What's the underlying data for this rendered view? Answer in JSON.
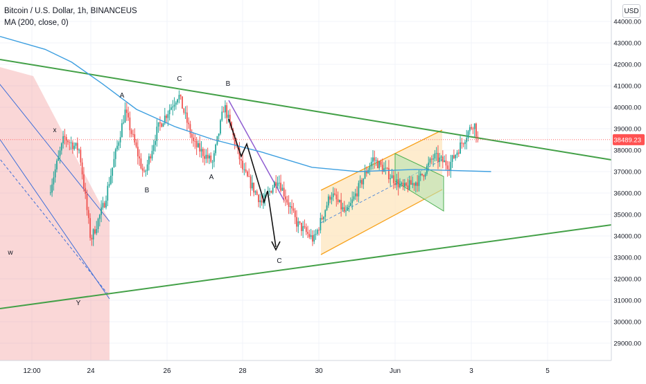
{
  "header": {
    "title": "Bitcoin / U.S. Dollar, 1h, BINANCEUS",
    "indicator": "MA (200, close, 0)",
    "currency": "USD"
  },
  "price_axis": {
    "ticks": [
      "44000.00",
      "43000.00",
      "42000.00",
      "41000.00",
      "40000.00",
      "39000.00",
      "38000.00",
      "37000.00",
      "36000.00",
      "35000.00",
      "34000.00",
      "33000.00",
      "32000.00",
      "31000.00",
      "30000.00",
      "29000.00"
    ],
    "last_price": "38489.23",
    "last_price_color": "#ff5252"
  },
  "time_axis": {
    "ticks": [
      "12:00",
      "24",
      "26",
      "28",
      "30",
      "Jun",
      "3",
      "5"
    ]
  },
  "annotations": [
    "w",
    "x",
    "Y",
    "A",
    "B",
    "C",
    "A",
    "B",
    "C"
  ],
  "colors": {
    "up": "#26a69a",
    "down": "#ef5350",
    "ma": "#3d9fe0",
    "trendline": "#43a047",
    "channel_orange": "#f7a21b",
    "red_zone": "#f28b8b"
  },
  "chart_data": {
    "type": "candlestick",
    "symbol": "Bitcoin / U.S. Dollar",
    "interval": "1h",
    "exchange": "BINANCEUS",
    "ylim": [
      28000,
      45000
    ],
    "x_ticks": [
      "12:00",
      "24",
      "26",
      "28",
      "30",
      "Jun",
      "3",
      "5"
    ],
    "y_ticks": [
      29000,
      30000,
      31000,
      32000,
      33000,
      34000,
      35000,
      36000,
      37000,
      38000,
      39000,
      40000,
      41000,
      42000,
      43000,
      44000
    ],
    "last_price": 38489.23,
    "price_path": [
      {
        "day": 22.9,
        "price": 36000
      },
      {
        "day": 23.3,
        "price": 38600
      },
      {
        "day": 23.7,
        "price": 38000
      },
      {
        "day": 24.0,
        "price": 33800
      },
      {
        "day": 24.35,
        "price": 35500
      },
      {
        "day": 24.9,
        "price": 39800
      },
      {
        "day": 25.4,
        "price": 36800
      },
      {
        "day": 25.75,
        "price": 39000
      },
      {
        "day": 26.3,
        "price": 40600
      },
      {
        "day": 26.7,
        "price": 38300
      },
      {
        "day": 27.2,
        "price": 37400
      },
      {
        "day": 27.5,
        "price": 40100
      },
      {
        "day": 28.0,
        "price": 37000
      },
      {
        "day": 28.5,
        "price": 35500
      },
      {
        "day": 28.9,
        "price": 36700
      },
      {
        "day": 29.4,
        "price": 34600
      },
      {
        "day": 29.85,
        "price": 33800
      },
      {
        "day": 30.3,
        "price": 36000
      },
      {
        "day": 30.7,
        "price": 35000
      },
      {
        "day": 31.2,
        "price": 36900
      },
      {
        "day": 31.4,
        "price": 37600
      },
      {
        "day": 32.2,
        "price": 36200
      },
      {
        "day": 32.6,
        "price": 36600
      },
      {
        "day": 33.0,
        "price": 37700
      },
      {
        "day": 33.4,
        "price": 37300
      },
      {
        "day": 33.85,
        "price": 38700
      },
      {
        "day": 34.05,
        "price": 39300
      },
      {
        "day": 34.15,
        "price": 38489.23
      }
    ],
    "ma_200": [
      {
        "day": 22.8,
        "price": 42700
      },
      {
        "day": 23.5,
        "price": 42100
      },
      {
        "day": 24.3,
        "price": 41100
      },
      {
        "day": 25.2,
        "price": 39900
      },
      {
        "day": 26.2,
        "price": 39100
      },
      {
        "day": 27.2,
        "price": 38500
      },
      {
        "day": 28.5,
        "price": 37900
      },
      {
        "day": 29.8,
        "price": 37200
      },
      {
        "day": 31.0,
        "price": 37000
      },
      {
        "day": 32.5,
        "price": 37100
      },
      {
        "day": 33.5,
        "price": 37050
      },
      {
        "day": 34.5,
        "price": 37000
      }
    ]
  }
}
